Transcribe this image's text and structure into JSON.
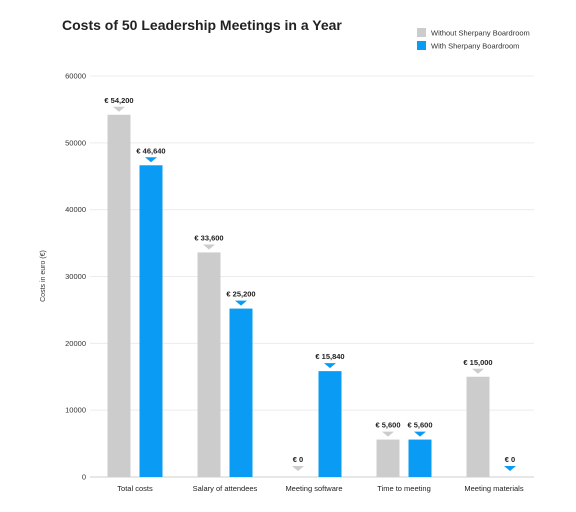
{
  "chart_data": {
    "type": "bar",
    "title": "Costs of 50 Leadership Meetings in a Year",
    "xlabel": "",
    "ylabel": "Costs in euro (€)",
    "ylim": [
      0,
      60000
    ],
    "yticks": [
      0,
      10000,
      20000,
      30000,
      40000,
      50000,
      60000
    ],
    "grid": true,
    "legend_position": "top-right",
    "categories": [
      "Total costs",
      "Salary of attendees",
      "Meeting software",
      "Time to meeting",
      "Meeting materials"
    ],
    "series": [
      {
        "name": "Without Sherpany Boardroom",
        "color": "#cccccc",
        "values": [
          54200,
          33600,
          0,
          5600,
          15000
        ],
        "labels": [
          "€ 54,200",
          "€ 33,600",
          "€ 0",
          "€ 5,600",
          "€ 15,000"
        ]
      },
      {
        "name": "With Sherpany Boardroom",
        "color": "#0a9cf5",
        "values": [
          46640,
          25200,
          15840,
          5600,
          0
        ],
        "labels": [
          "€ 46,640",
          "€ 25,200",
          "€ 15,840",
          "€ 5,600",
          "€ 0"
        ]
      }
    ]
  }
}
